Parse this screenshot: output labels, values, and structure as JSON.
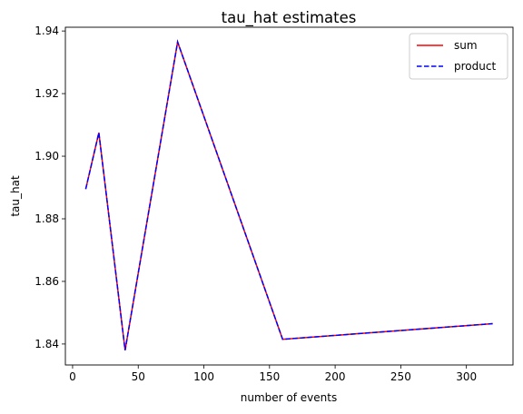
{
  "chart_data": {
    "type": "line",
    "title": "tau_hat estimates",
    "xlabel": "number of events",
    "ylabel": "tau_hat",
    "x": [
      10,
      20,
      40,
      80,
      160,
      320
    ],
    "series": [
      {
        "name": "sum",
        "values": [
          1.8895,
          1.9075,
          1.838,
          1.9365,
          1.8415,
          1.8465
        ],
        "color": "#ff0000",
        "style": "solid"
      },
      {
        "name": "product",
        "values": [
          1.8895,
          1.9075,
          1.838,
          1.9365,
          1.8415,
          1.8465
        ],
        "color": "#0000ff",
        "style": "dashed"
      }
    ],
    "xlim": [
      -5.5,
      335.5
    ],
    "ylim": [
      1.8333,
      1.9412
    ],
    "xticks": [
      0,
      50,
      100,
      150,
      200,
      250,
      300
    ],
    "xtick_labels": [
      "0",
      "50",
      "100",
      "150",
      "200",
      "250",
      "300"
    ],
    "yticks": [
      1.84,
      1.86,
      1.88,
      1.9,
      1.92,
      1.94
    ],
    "ytick_labels": [
      "1.84",
      "1.86",
      "1.88",
      "1.90",
      "1.92",
      "1.94"
    ],
    "grid": false,
    "legend_position": "top-right"
  }
}
